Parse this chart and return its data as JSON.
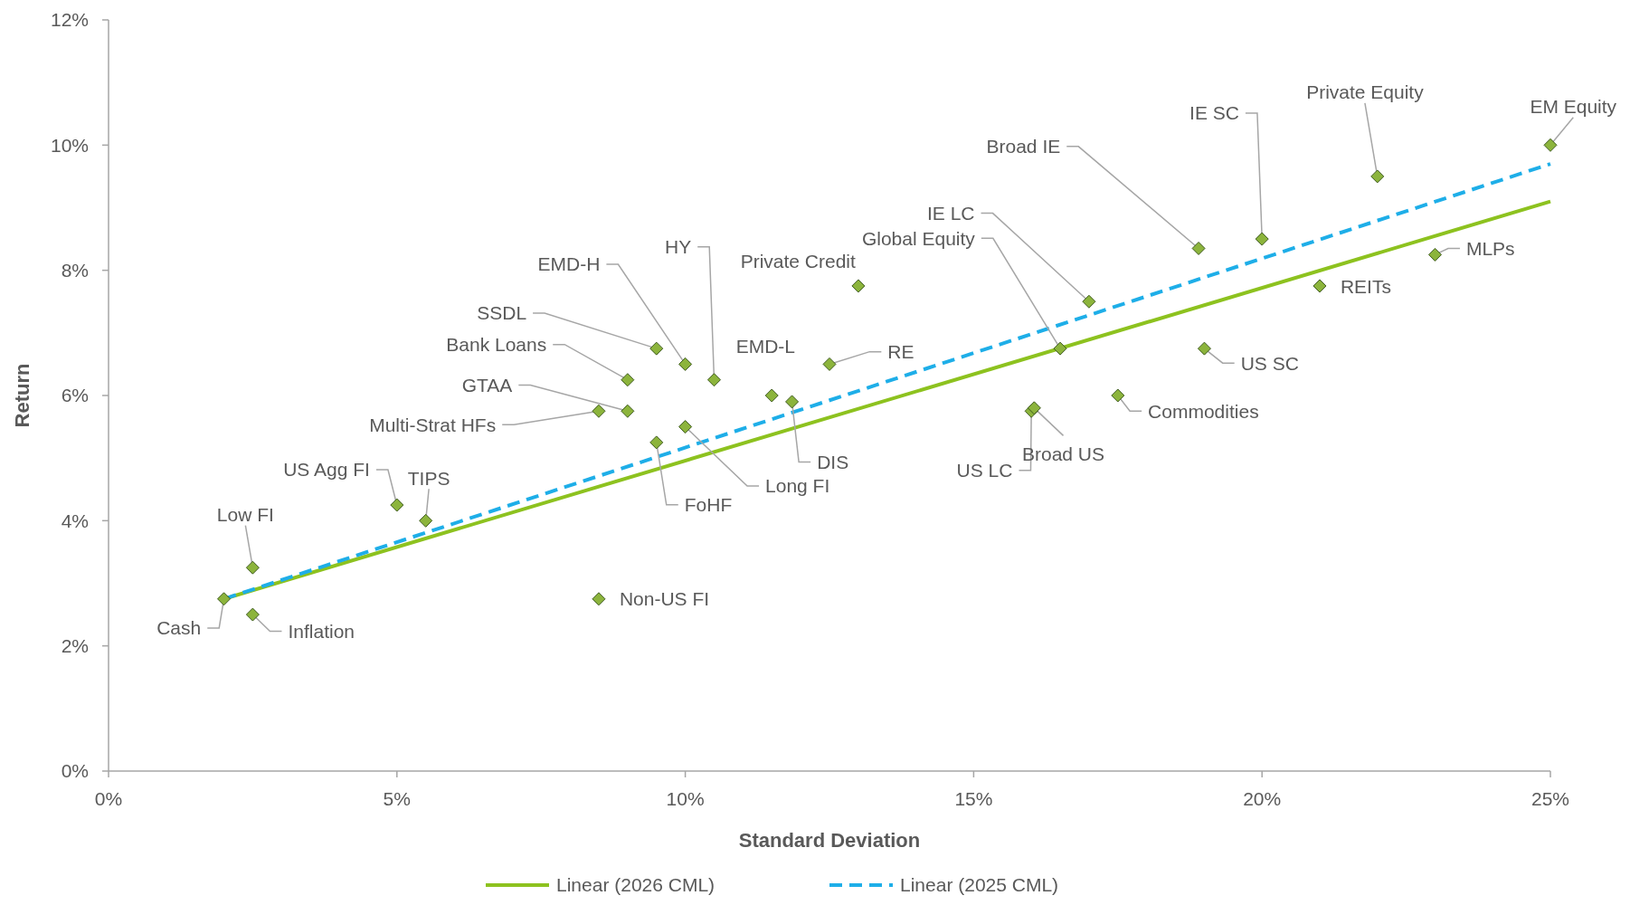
{
  "chart_data": {
    "type": "scatter",
    "xlabel": "Standard Deviation",
    "ylabel": "Return",
    "xlim": [
      0,
      25
    ],
    "ylim": [
      0,
      12
    ],
    "xticks": [
      {
        "value": 0,
        "label": "0%"
      },
      {
        "value": 5,
        "label": "5%"
      },
      {
        "value": 10,
        "label": "10%"
      },
      {
        "value": 15,
        "label": "15%"
      },
      {
        "value": 20,
        "label": "20%"
      },
      {
        "value": 25,
        "label": "25%"
      }
    ],
    "yticks": [
      {
        "value": 0,
        "label": "0%"
      },
      {
        "value": 2,
        "label": "2%"
      },
      {
        "value": 4,
        "label": "4%"
      },
      {
        "value": 6,
        "label": "6%"
      },
      {
        "value": 8,
        "label": "8%"
      },
      {
        "value": 10,
        "label": "10%"
      },
      {
        "value": 12,
        "label": "12%"
      }
    ],
    "grid": false,
    "legend": "bottom",
    "marker": "diamond",
    "series": [
      {
        "color": "#8cb43c",
        "x": [
          2,
          2.5,
          2.5,
          5,
          5.5,
          8.5,
          8.5,
          9,
          9,
          9.5,
          9.5,
          10,
          10,
          10.5,
          11.5,
          11.85,
          12.5,
          13,
          16.5,
          16,
          16.05,
          17,
          17.5,
          18.9,
          19,
          20,
          21,
          22,
          23,
          25
        ],
        "values": [
          2.75,
          3.25,
          2.5,
          4.25,
          4,
          2.75,
          5.75,
          5.75,
          6.25,
          6.75,
          5.25,
          6.5,
          5.5,
          6.25,
          6,
          5.9,
          6.5,
          7.75,
          6.75,
          5.75,
          5.8,
          7.5,
          6,
          8.35,
          6.75,
          8.5,
          7.75,
          9.5,
          8.25,
          10
        ]
      },
      {
        "type": "line",
        "name": "Linear (2026 CML)",
        "color": "#8dc21f",
        "line_style": "solid",
        "marker": "none",
        "x": [
          2,
          25
        ],
        "values": [
          2.75,
          9.1
        ]
      },
      {
        "type": "line",
        "name": "Linear (2025 CML)",
        "color": "#1eaee8",
        "line_style": "dashed",
        "marker": "none",
        "x": [
          2,
          25
        ],
        "values": [
          2.75,
          9.7
        ]
      }
    ],
    "annotations": [
      {
        "text": "Cash",
        "x": 2,
        "y": 2.75
      },
      {
        "text": "Low FI",
        "x": 2.5,
        "y": 3.25
      },
      {
        "text": "Inflation",
        "x": 2.5,
        "y": 2.5
      },
      {
        "text": "US Agg FI",
        "x": 5,
        "y": 4.25
      },
      {
        "text": "TIPS",
        "x": 5.5,
        "y": 4
      },
      {
        "text": "Non-US FI",
        "x": 8.5,
        "y": 2.75
      },
      {
        "text": "Multi-Strat HFs",
        "x": 8.5,
        "y": 5.75
      },
      {
        "text": "GTAA",
        "x": 9,
        "y": 5.75
      },
      {
        "text": "Bank Loans",
        "x": 9,
        "y": 6.25
      },
      {
        "text": "SSDL",
        "x": 9.5,
        "y": 6.75
      },
      {
        "text": "FoHF",
        "x": 9.5,
        "y": 5.25
      },
      {
        "text": "EMD-H",
        "x": 10,
        "y": 6.5
      },
      {
        "text": "Long FI",
        "x": 10,
        "y": 5.5
      },
      {
        "text": "HY",
        "x": 10.5,
        "y": 6.25
      },
      {
        "text": "EMD-L",
        "x": 11.5,
        "y": 6
      },
      {
        "text": "DIS",
        "x": 11.85,
        "y": 5.9
      },
      {
        "text": "RE",
        "x": 12.5,
        "y": 6.5
      },
      {
        "text": "Private Credit",
        "x": 13,
        "y": 7.75
      },
      {
        "text": "Global Equity",
        "x": 16.5,
        "y": 6.75
      },
      {
        "text": "US LC",
        "x": 16,
        "y": 5.75
      },
      {
        "text": "Broad US",
        "x": 16.05,
        "y": 5.8
      },
      {
        "text": "IE LC",
        "x": 17,
        "y": 7.5
      },
      {
        "text": "Commodities",
        "x": 17.5,
        "y": 6
      },
      {
        "text": "Broad IE",
        "x": 18.9,
        "y": 8.35
      },
      {
        "text": "US SC",
        "x": 19,
        "y": 6.75
      },
      {
        "text": "IE SC",
        "x": 20,
        "y": 8.5
      },
      {
        "text": "REITs",
        "x": 21,
        "y": 7.75
      },
      {
        "text": "Private Equity",
        "x": 22,
        "y": 9.5
      },
      {
        "text": "MLPs",
        "x": 23,
        "y": 8.25
      },
      {
        "text": "EM Equity",
        "x": 25,
        "y": 10
      }
    ]
  }
}
